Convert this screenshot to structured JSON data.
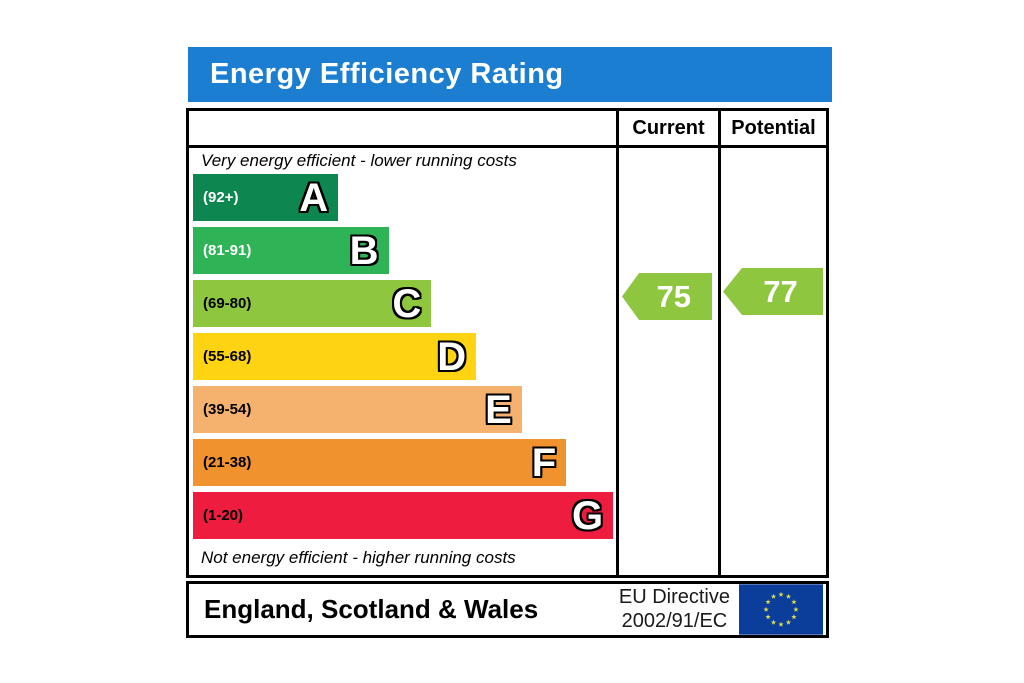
{
  "title": "Energy Efficiency Rating",
  "title_bar_color": "#1b7ed1",
  "columns": {
    "current": "Current",
    "potential": "Potential"
  },
  "captions": {
    "top": "Very energy efficient - lower running costs",
    "bottom": "Not energy efficient - higher running costs"
  },
  "bands": [
    {
      "letter": "A",
      "range": "(92+)",
      "color": "#0d8650",
      "label_color": "#ffffff",
      "width_pct": 34
    },
    {
      "letter": "B",
      "range": "(81-91)",
      "color": "#2eb457",
      "label_color": "#ffffff",
      "width_pct": 45.8
    },
    {
      "letter": "C",
      "range": "(69-80)",
      "color": "#8ec73e",
      "label_color": "#000000",
      "width_pct": 55.8
    },
    {
      "letter": "D",
      "range": "(55-68)",
      "color": "#fed312",
      "label_color": "#000000",
      "width_pct": 66.3
    },
    {
      "letter": "E",
      "range": "(39-54)",
      "color": "#f5b26f",
      "label_color": "#000000",
      "width_pct": 77
    },
    {
      "letter": "F",
      "range": "(21-38)",
      "color": "#f0922e",
      "label_color": "#000000",
      "width_pct": 87.4
    },
    {
      "letter": "G",
      "range": "(1-20)",
      "color": "#ee1d40",
      "label_color": "#000000",
      "width_pct": 98.4
    }
  ],
  "ratings": {
    "current": {
      "value": "75",
      "color": "#8ec63f"
    },
    "potential": {
      "value": "77",
      "color": "#8ec63f"
    }
  },
  "footer": {
    "region": "England, Scotland & Wales",
    "directive_line1": "EU Directive",
    "directive_line2": "2002/91/EC",
    "flag_background": "#0b3d9b",
    "flag_star_color": "#dce04b"
  },
  "chart_data": {
    "type": "bar",
    "title": "Energy Efficiency Rating",
    "categories": [
      "A",
      "B",
      "C",
      "D",
      "E",
      "F",
      "G"
    ],
    "band_ranges": [
      "92+",
      "81-91",
      "69-80",
      "55-68",
      "39-54",
      "21-38",
      "1-20"
    ],
    "band_colors": [
      "#0d8650",
      "#2eb457",
      "#8ec73e",
      "#fed312",
      "#f5b26f",
      "#f0922e",
      "#ee1d40"
    ],
    "bar_relative_widths": [
      34,
      45.8,
      55.8,
      66.3,
      77,
      87.4,
      98.4
    ],
    "series": [
      {
        "name": "Current",
        "value": 75,
        "band": "C",
        "color": "#8ec63f"
      },
      {
        "name": "Potential",
        "value": 77,
        "band": "C",
        "color": "#8ec63f"
      }
    ],
    "top_annotation": "Very energy efficient - lower running costs",
    "bottom_annotation": "Not energy efficient - higher running costs",
    "region": "England, Scotland & Wales",
    "directive": "EU Directive 2002/91/EC"
  }
}
